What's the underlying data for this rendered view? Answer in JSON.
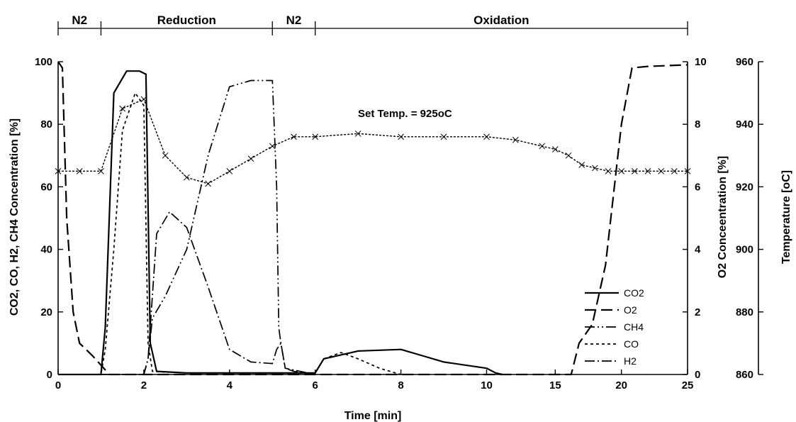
{
  "chart_data": {
    "type": "line",
    "xlabel": "Time [min]",
    "ylabel_left": "CO2, CO, H2, CH4 Concentration [%]",
    "ylabel_right1": "O2 Conceentration [%]",
    "ylabel_right2": "Temperature [oC]",
    "x_ticks": [
      "0",
      "2",
      "4",
      "6",
      "8",
      "10",
      "15",
      "20",
      "25"
    ],
    "y_left_ticks": [
      "0",
      "20",
      "40",
      "60",
      "80",
      "100"
    ],
    "y_right1_ticks": [
      "0",
      "2",
      "4",
      "6",
      "8",
      "10"
    ],
    "y_right2_ticks": [
      "860",
      "880",
      "900",
      "920",
      "940",
      "960"
    ],
    "ylim_left": [
      0,
      100
    ],
    "ylim_right1": [
      0,
      10
    ],
    "ylim_right2": [
      860,
      960
    ],
    "phases": [
      {
        "label": "N2",
        "start": 0,
        "end": 1
      },
      {
        "label": "Reduction",
        "start": 1,
        "end": 5
      },
      {
        "label": "N2",
        "start": 5,
        "end": 6
      },
      {
        "label": "Oxidation",
        "start": 6,
        "end": 25
      }
    ],
    "annotation": "Set Temp. = 925oC",
    "grid": false,
    "legend_position": "bottom-right",
    "series": [
      {
        "name": "CO2",
        "axis": "left",
        "x": [
          0,
          1,
          1.1,
          1.3,
          1.6,
          1.9,
          2.05,
          2.15,
          2.3,
          3,
          5,
          6,
          6.2,
          7,
          8,
          8.5,
          9,
          10,
          10.5,
          11
        ],
        "y": [
          0,
          0,
          15,
          90,
          97,
          97,
          96,
          10,
          1,
          0.5,
          0.5,
          0.5,
          5,
          7.5,
          8,
          6,
          4,
          2,
          0.5,
          0
        ]
      },
      {
        "name": "O2",
        "axis": "right1",
        "x": [
          0,
          0.1,
          0.2,
          0.35,
          0.5,
          0.8,
          1.0,
          1.2,
          3,
          6,
          10,
          15,
          16.2,
          16.8,
          17.8,
          18.8,
          20,
          20.8,
          22,
          25
        ],
        "y": [
          10,
          9.8,
          5,
          2,
          1,
          0.6,
          0.3,
          0,
          0,
          0,
          0,
          0,
          0,
          1,
          1.6,
          3.5,
          8,
          9.8,
          9.85,
          9.9
        ]
      },
      {
        "name": "CH4",
        "axis": "left",
        "x": [
          0,
          2.0,
          2.1,
          2.2,
          2.5,
          3,
          3.5,
          4,
          4.5,
          5.0,
          5.1,
          5.15,
          5.2,
          5.3,
          5.5,
          6
        ],
        "y": [
          0,
          0,
          5,
          18,
          25,
          40,
          70,
          92,
          94,
          94,
          60,
          15,
          10,
          2,
          1,
          0
        ]
      },
      {
        "name": "CO",
        "axis": "left",
        "x": [
          0,
          1.0,
          1.1,
          1.3,
          1.5,
          1.8,
          2.0,
          2.1,
          2.2,
          2.5,
          3,
          3.5,
          4,
          4.5,
          5,
          5.1,
          5.2,
          6,
          6.2,
          6.6,
          7,
          7.5,
          8
        ],
        "y": [
          0,
          0,
          8,
          40,
          78,
          90,
          86,
          10,
          1,
          0.8,
          0.5,
          0.5,
          0.5,
          0.5,
          0.5,
          0.5,
          0.5,
          0.5,
          5,
          7,
          5,
          2,
          0
        ]
      },
      {
        "name": "H2",
        "axis": "left",
        "x": [
          0,
          2.0,
          2.1,
          2.3,
          2.6,
          3,
          3.5,
          4,
          4.5,
          5,
          5.1,
          5.2,
          5.3,
          6
        ],
        "y": [
          0,
          0,
          5,
          45,
          52,
          47,
          28,
          8,
          4,
          3.5,
          8,
          10,
          2,
          0
        ]
      },
      {
        "name": "Temperature",
        "axis": "right2",
        "x": [
          0,
          0.5,
          1,
          1.5,
          2,
          2.5,
          3,
          3.5,
          4,
          4.5,
          5,
          5.5,
          6,
          7,
          8,
          9,
          10,
          12,
          14,
          15,
          16,
          17,
          18,
          19,
          20,
          21,
          22,
          23,
          24,
          25
        ],
        "y": [
          925,
          925,
          925,
          945,
          948,
          930,
          923,
          921,
          925,
          929,
          933,
          936,
          936,
          937,
          936,
          936,
          936,
          935,
          933,
          932,
          930,
          927,
          926,
          925,
          925,
          925,
          925,
          925,
          925,
          925
        ]
      }
    ]
  }
}
